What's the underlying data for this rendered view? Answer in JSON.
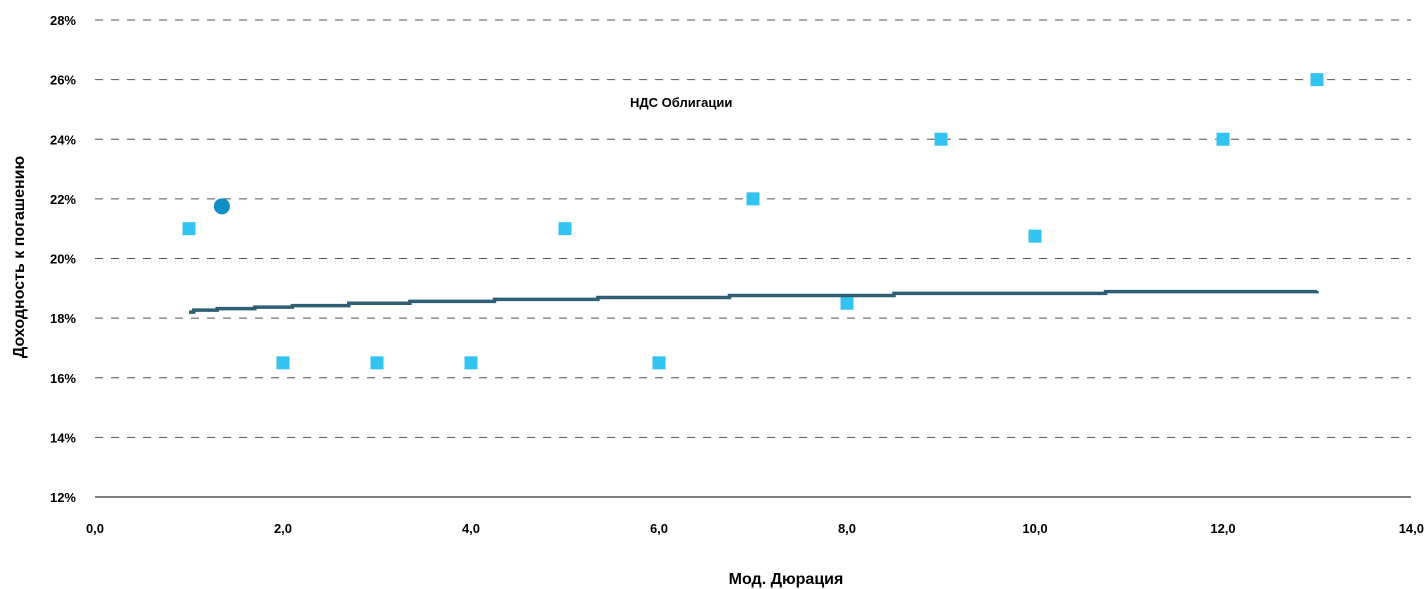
{
  "chart_data": {
    "type": "scatter",
    "title": "",
    "xlabel": "Мод. Дюрация",
    "ylabel": "Доходность к погашению",
    "xlim": [
      0,
      14
    ],
    "ylim": [
      12,
      28
    ],
    "x_ticks": [
      "0,0",
      "2,0",
      "4,0",
      "6,0",
      "8,0",
      "10,0",
      "12,0",
      "14,0"
    ],
    "y_ticks": [
      "12%",
      "14%",
      "16%",
      "18%",
      "20%",
      "22%",
      "24%",
      "26%",
      "28%"
    ],
    "grid": "horizontal dashed",
    "annotation": "НДС  Облигации",
    "series": [
      {
        "marker": "square",
        "color": "#33c3f0",
        "points": [
          {
            "x": 1.0,
            "y": 21.0
          },
          {
            "x": 2.0,
            "y": 16.5
          },
          {
            "x": 3.0,
            "y": 16.5
          },
          {
            "x": 4.0,
            "y": 16.5
          },
          {
            "x": 5.0,
            "y": 21.0
          },
          {
            "x": 6.0,
            "y": 16.5
          },
          {
            "x": 7.0,
            "y": 22.0
          },
          {
            "x": 8.0,
            "y": 18.5
          },
          {
            "x": 9.0,
            "y": 24.0
          },
          {
            "x": 10.0,
            "y": 20.75
          },
          {
            "x": 12.0,
            "y": 24.0
          },
          {
            "x": 13.0,
            "y": 26.0
          }
        ]
      },
      {
        "marker": "circle",
        "color": "#0f8fc7",
        "points": [
          {
            "x": 1.35,
            "y": 21.75
          }
        ]
      },
      {
        "marker": "step-line",
        "color": "#2e5f75",
        "points": [
          {
            "x": 1.0,
            "y": 18.2
          },
          {
            "x": 1.05,
            "y": 18.27
          },
          {
            "x": 1.3,
            "y": 18.32
          },
          {
            "x": 1.7,
            "y": 18.37
          },
          {
            "x": 2.1,
            "y": 18.42
          },
          {
            "x": 2.7,
            "y": 18.5
          },
          {
            "x": 3.35,
            "y": 18.56
          },
          {
            "x": 4.25,
            "y": 18.63
          },
          {
            "x": 5.35,
            "y": 18.69
          },
          {
            "x": 6.75,
            "y": 18.76
          },
          {
            "x": 8.5,
            "y": 18.83
          },
          {
            "x": 10.75,
            "y": 18.89
          },
          {
            "x": 13.0,
            "y": 18.91
          }
        ]
      }
    ]
  }
}
